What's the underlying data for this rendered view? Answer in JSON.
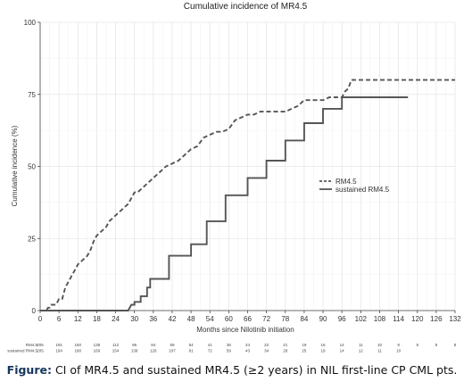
{
  "chart_data": {
    "type": "line",
    "title": "Cumulative incidence of MR4.5",
    "xlabel": "Months since Nilotinib initiation",
    "ylabel": "Cumulative incidence (%)",
    "xlim": [
      0,
      132
    ],
    "ylim": [
      0,
      100
    ],
    "x_ticks": [
      0,
      6,
      12,
      18,
      24,
      30,
      36,
      42,
      48,
      54,
      60,
      66,
      72,
      78,
      84,
      90,
      96,
      102,
      108,
      114,
      120,
      126,
      132
    ],
    "y_ticks": [
      0,
      25,
      50,
      75,
      100
    ],
    "grid": true,
    "legend_position": "right-center",
    "series": [
      {
        "name": "RM4.5",
        "style": "dashed",
        "color": "#555555",
        "points": [
          [
            0,
            0
          ],
          [
            2,
            0
          ],
          [
            2.5,
            1
          ],
          [
            3,
            1
          ],
          [
            3.5,
            2
          ],
          [
            5,
            2
          ],
          [
            5.5,
            3
          ],
          [
            6,
            4
          ],
          [
            7,
            4
          ],
          [
            7.5,
            6
          ],
          [
            8,
            8
          ],
          [
            9,
            10
          ],
          [
            9.5,
            11
          ],
          [
            10,
            12
          ],
          [
            11,
            14
          ],
          [
            12,
            16
          ],
          [
            13,
            17
          ],
          [
            14,
            18
          ],
          [
            15,
            19
          ],
          [
            16,
            21
          ],
          [
            17,
            24
          ],
          [
            18,
            26
          ],
          [
            19,
            27
          ],
          [
            20,
            28
          ],
          [
            21,
            29
          ],
          [
            22,
            31
          ],
          [
            23,
            32
          ],
          [
            24,
            33
          ],
          [
            25,
            34
          ],
          [
            26,
            35
          ],
          [
            27,
            36
          ],
          [
            28,
            37
          ],
          [
            29,
            39
          ],
          [
            30,
            41
          ],
          [
            31,
            41
          ],
          [
            32,
            42
          ],
          [
            33,
            43
          ],
          [
            34,
            44
          ],
          [
            35,
            45
          ],
          [
            36,
            46
          ],
          [
            38,
            48
          ],
          [
            40,
            50
          ],
          [
            42,
            51
          ],
          [
            44,
            52
          ],
          [
            46,
            54
          ],
          [
            47,
            55
          ],
          [
            48,
            56
          ],
          [
            50,
            57
          ],
          [
            52,
            60
          ],
          [
            54,
            61
          ],
          [
            56,
            62
          ],
          [
            58,
            62
          ],
          [
            60,
            63
          ],
          [
            62,
            66
          ],
          [
            64,
            67
          ],
          [
            66,
            68
          ],
          [
            68,
            68
          ],
          [
            70,
            69
          ],
          [
            72,
            69
          ],
          [
            78,
            69
          ],
          [
            80,
            70
          ],
          [
            82,
            71
          ],
          [
            84,
            73
          ],
          [
            90,
            73
          ],
          [
            92,
            74
          ],
          [
            96,
            74
          ],
          [
            97,
            76
          ],
          [
            98,
            77
          ],
          [
            99,
            80
          ],
          [
            132,
            80
          ]
        ]
      },
      {
        "name": "sustained RM4.5",
        "style": "solid",
        "color": "#555555",
        "points": [
          [
            0,
            0
          ],
          [
            28,
            0
          ],
          [
            29,
            2
          ],
          [
            30,
            2
          ],
          [
            30,
            3
          ],
          [
            32,
            3
          ],
          [
            32,
            5
          ],
          [
            34,
            5
          ],
          [
            34,
            8
          ],
          [
            35,
            8
          ],
          [
            35,
            11
          ],
          [
            41,
            11
          ],
          [
            41,
            19
          ],
          [
            48,
            19
          ],
          [
            48,
            23
          ],
          [
            53,
            23
          ],
          [
            53,
            31
          ],
          [
            59,
            31
          ],
          [
            59,
            40
          ],
          [
            66,
            40
          ],
          [
            66,
            46
          ],
          [
            72,
            46
          ],
          [
            72,
            52
          ],
          [
            78,
            52
          ],
          [
            78,
            59
          ],
          [
            84,
            59
          ],
          [
            84,
            65
          ],
          [
            90,
            65
          ],
          [
            90,
            70
          ],
          [
            96,
            70
          ],
          [
            96,
            74
          ],
          [
            117,
            74
          ]
        ]
      }
    ],
    "risk_table": {
      "rows": [
        {
          "label": "RM4.5",
          "values": [
            "205",
            "191",
            "160",
            "138",
            "112",
            "96",
            "84",
            "69",
            "54",
            "41",
            "36",
            "24",
            "22",
            "21",
            "19",
            "16",
            "14",
            "11",
            "10",
            "9",
            "8",
            "8",
            "8"
          ]
        },
        {
          "label": "sustained RM4.5",
          "values": [
            "205",
            "194",
            "180",
            "169",
            "154",
            "139",
            "126",
            "107",
            "81",
            "72",
            "59",
            "43",
            "34",
            "28",
            "25",
            "19",
            "14",
            "12",
            "11",
            "10",
            "",
            "",
            ""
          ]
        }
      ]
    }
  },
  "caption": {
    "label": "Figure:",
    "text": " CI of MR4.5 and sustained MR4.5 (≥2 years) in NIL first-line CP CML pts."
  }
}
